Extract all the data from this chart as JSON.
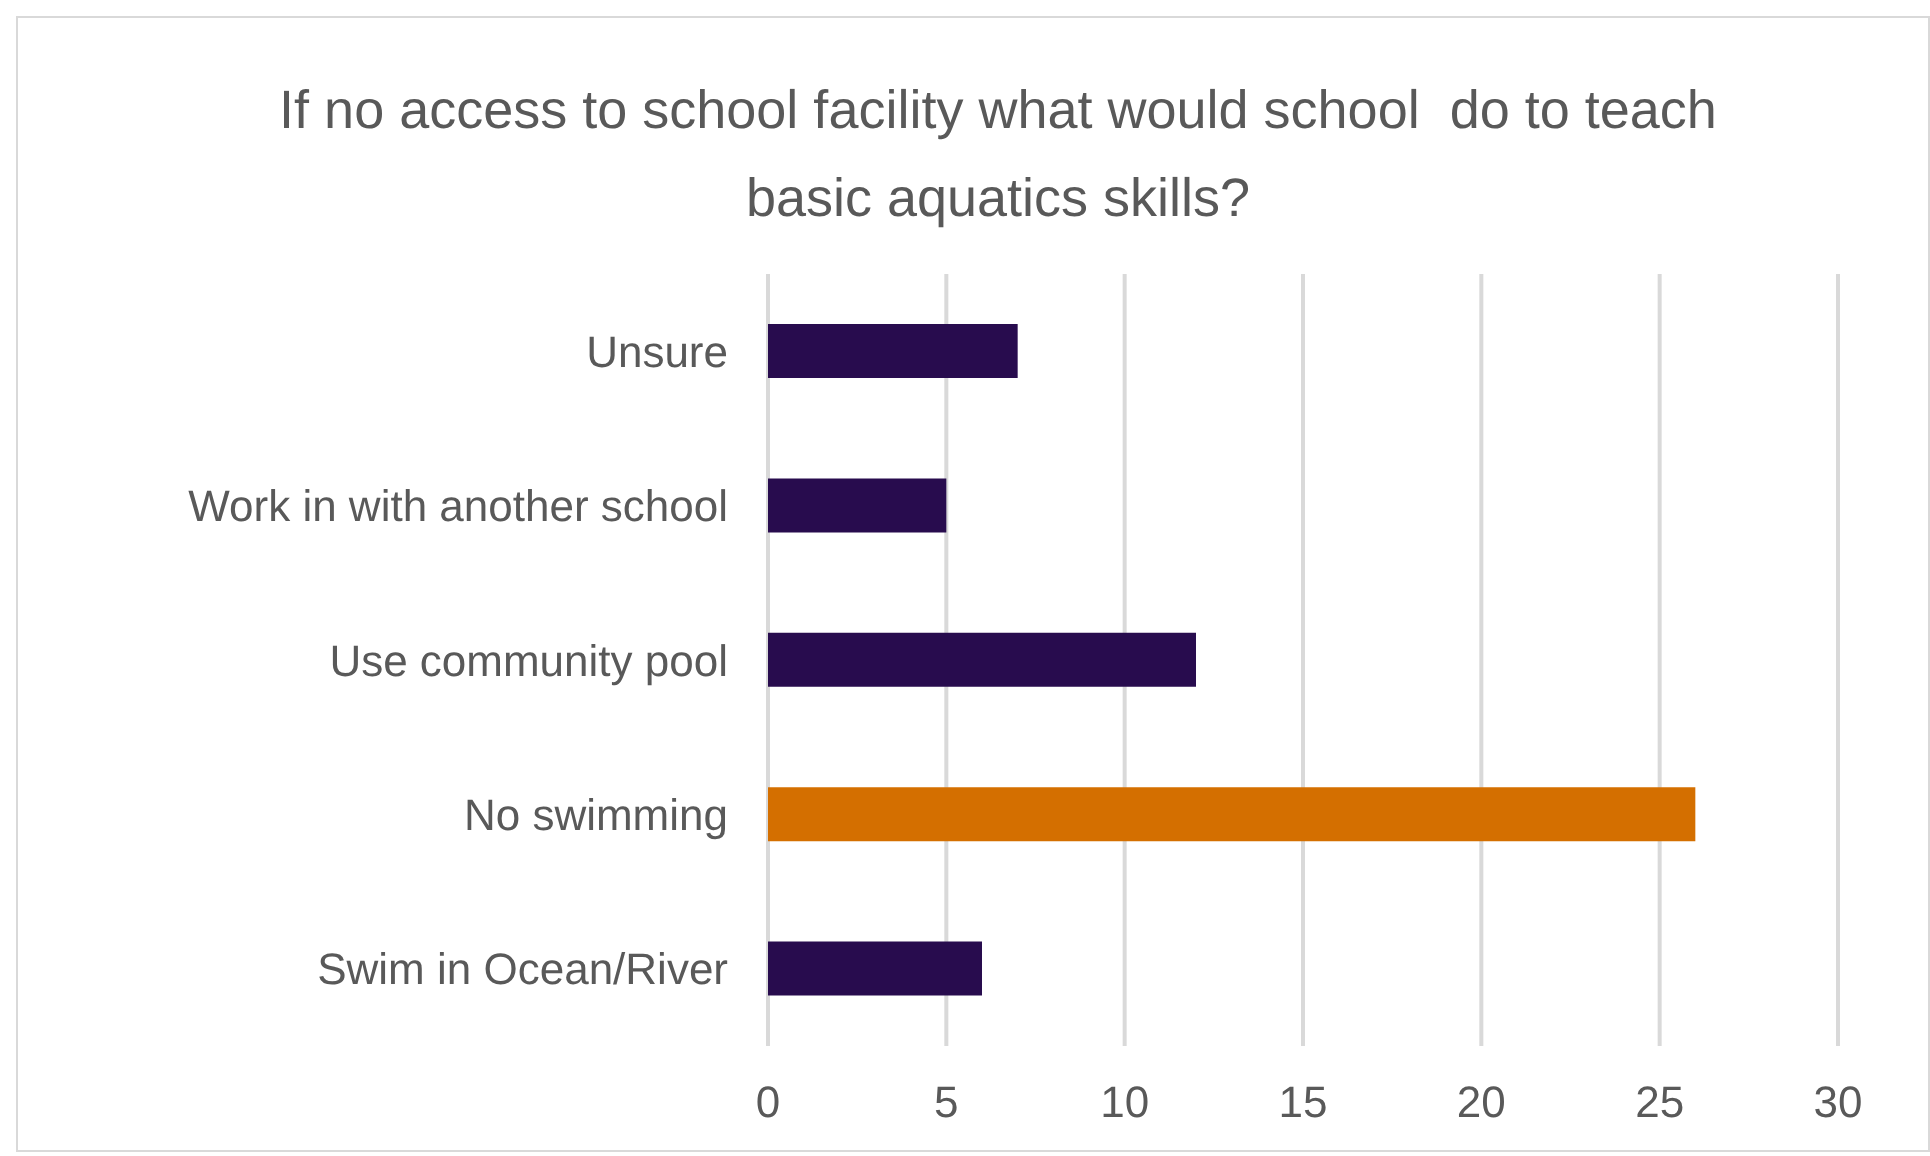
{
  "chart_data": {
    "type": "bar",
    "orientation": "horizontal",
    "title": "If no access to school facility what would school  do to teach basic aquatics skills?",
    "categories": [
      "Unsure",
      "Work in with another school",
      "Use community pool",
      "No swimming",
      "Swim in Ocean/River"
    ],
    "values": [
      7,
      5,
      12,
      26,
      6
    ],
    "colors": [
      "#280c4e",
      "#280c4e",
      "#280c4e",
      "#d46f00",
      "#280c4e"
    ],
    "xlim": [
      0,
      30
    ],
    "xticks": [
      0,
      5,
      10,
      15,
      20,
      25,
      30
    ],
    "grid": "x",
    "legend": false
  }
}
